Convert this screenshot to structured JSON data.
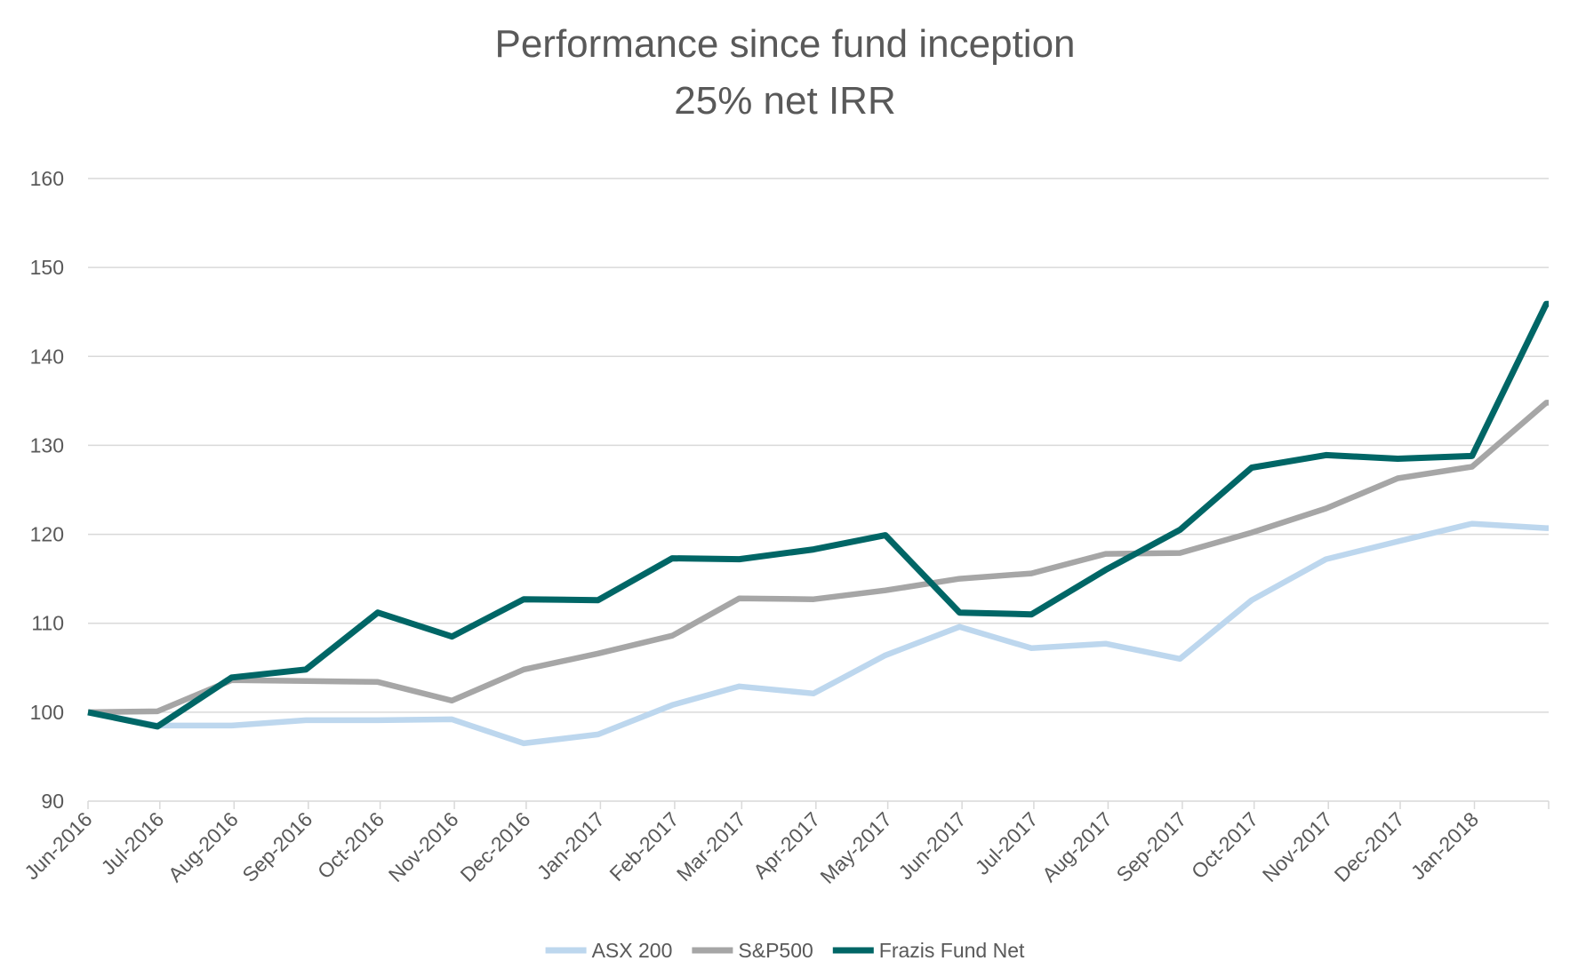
{
  "chart_data": {
    "type": "line",
    "title": "Performance since fund inception",
    "subtitle": "25% net IRR",
    "xlabel": "",
    "ylabel": "",
    "ylim": [
      90,
      160
    ],
    "y_ticks": [
      90,
      100,
      110,
      120,
      130,
      140,
      150,
      160
    ],
    "x_tick_labels": [
      "Jun-2016",
      "Jul-2016",
      "Aug-2016",
      "Sep-2016",
      "Oct-2016",
      "Nov-2016",
      "Dec-2016",
      "Jan-2017",
      "Feb-2017",
      "Mar-2017",
      "Apr-2017",
      "May-2017",
      "Jun-2017",
      "Jul-2017",
      "Aug-2017",
      "Sep-2017",
      "Oct-2017",
      "Nov-2017",
      "Dec-2017",
      "Jan-2018"
    ],
    "x_range_months": [
      "Jun-2016",
      "Feb-2018"
    ],
    "grid": "horizontal",
    "legend_position": "bottom",
    "series": [
      {
        "name": "ASX 200",
        "color": "#BDD7EE",
        "x": [
          "2016-06-01",
          "2016-06-30",
          "2016-07-31",
          "2016-08-31",
          "2016-09-30",
          "2016-10-31",
          "2016-11-30",
          "2016-12-31",
          "2017-01-31",
          "2017-02-28",
          "2017-03-31",
          "2017-04-30",
          "2017-05-31",
          "2017-06-30",
          "2017-07-31",
          "2017-08-31",
          "2017-09-30",
          "2017-10-31",
          "2017-11-30",
          "2017-12-31",
          "2018-01-31",
          "2018-02-28"
        ],
        "values": [
          100.0,
          98.5,
          98.5,
          99.1,
          99.1,
          99.2,
          96.5,
          97.5,
          100.8,
          102.9,
          102.1,
          106.4,
          109.6,
          107.2,
          107.7,
          106.0,
          112.6,
          117.2,
          119.2,
          121.2,
          120.7,
          120.7
        ]
      },
      {
        "name": "S&P500",
        "color": "#A6A6A6",
        "x": [
          "2016-06-01",
          "2016-06-30",
          "2016-07-31",
          "2016-08-31",
          "2016-09-30",
          "2016-10-31",
          "2016-11-30",
          "2016-12-31",
          "2017-01-31",
          "2017-02-28",
          "2017-03-31",
          "2017-04-30",
          "2017-05-31",
          "2017-06-30",
          "2017-07-31",
          "2017-08-31",
          "2017-09-30",
          "2017-10-31",
          "2017-11-30",
          "2017-12-31",
          "2018-01-31",
          "2018-02-28"
        ],
        "values": [
          100.0,
          100.1,
          103.6,
          103.5,
          103.4,
          101.3,
          104.8,
          106.6,
          108.6,
          112.8,
          112.7,
          113.7,
          115.0,
          115.6,
          117.8,
          117.9,
          120.2,
          122.9,
          126.3,
          127.6,
          134.8,
          134.8
        ]
      },
      {
        "name": "Frazis Fund Net",
        "color": "#006666",
        "x": [
          "2016-06-01",
          "2016-06-30",
          "2016-07-31",
          "2016-08-31",
          "2016-09-30",
          "2016-10-31",
          "2016-11-30",
          "2016-12-31",
          "2017-01-31",
          "2017-02-28",
          "2017-03-31",
          "2017-04-30",
          "2017-05-31",
          "2017-06-30",
          "2017-07-31",
          "2017-08-31",
          "2017-09-30",
          "2017-10-31",
          "2017-11-30",
          "2017-12-31",
          "2018-01-31",
          "2018-02-28"
        ],
        "values": [
          100.0,
          98.4,
          103.9,
          104.8,
          111.2,
          108.5,
          112.7,
          112.6,
          117.3,
          117.2,
          118.3,
          119.9,
          111.2,
          111.0,
          116.0,
          120.5,
          127.5,
          128.9,
          128.5,
          128.8,
          145.9,
          145.9
        ]
      }
    ]
  }
}
